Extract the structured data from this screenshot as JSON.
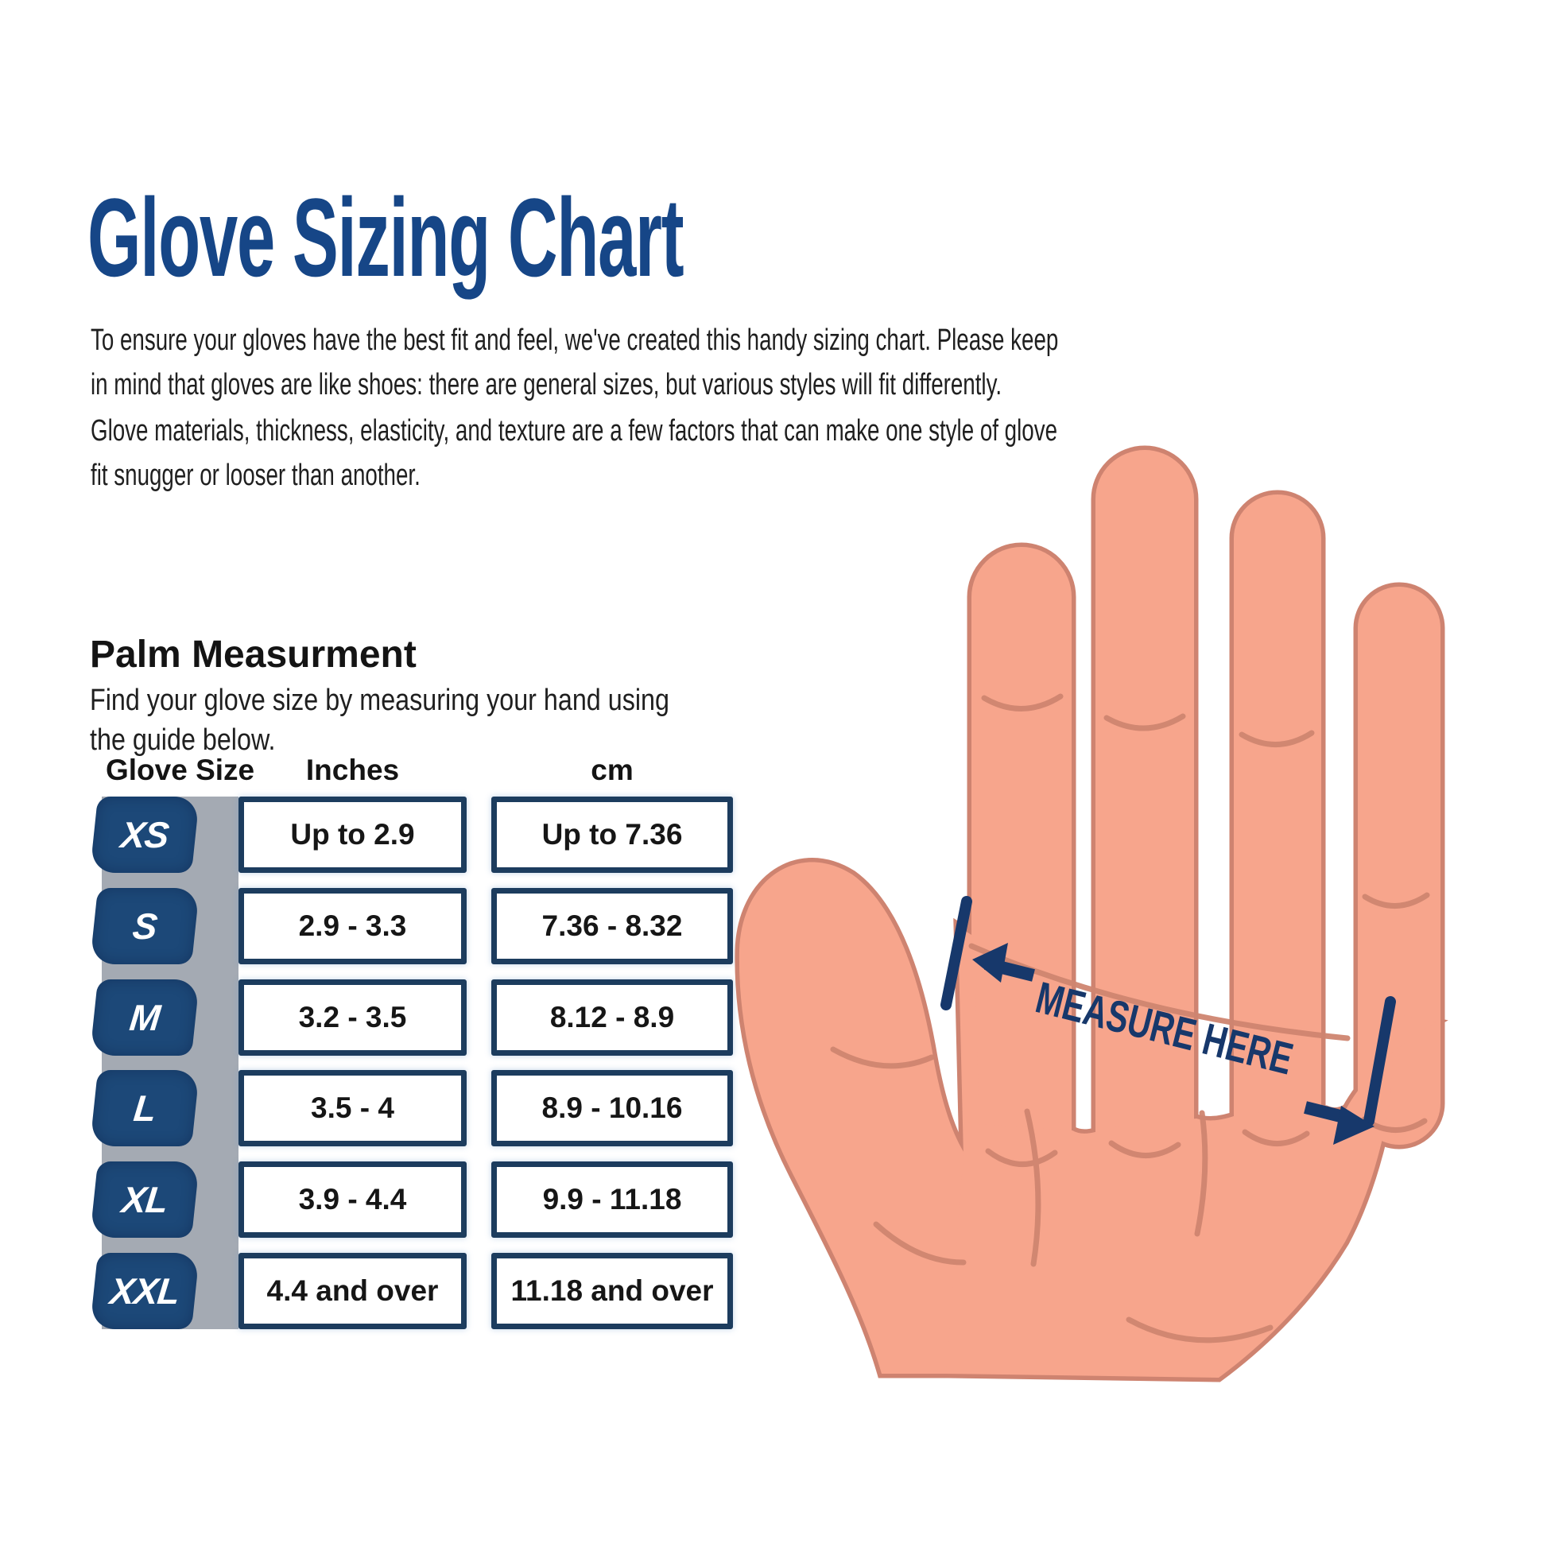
{
  "title": "Glove Sizing Chart",
  "intro": {
    "line1": "To ensure your gloves have the best fit and feel, we've created this handy sizing chart. Please keep",
    "line2": "in mind that gloves are like shoes: there are general sizes, but various styles will fit differently.",
    "line3": "Glove materials, thickness, elasticity, and texture are a few factors that can make one style of glove",
    "line4": "fit snugger or looser than another."
  },
  "palm_section": {
    "heading": "Palm Measurment",
    "sub_line1": "Find your glove size by measuring your hand using",
    "sub_line2": "the guide below."
  },
  "table": {
    "headers": {
      "size": "Glove Size",
      "inches": "Inches",
      "cm": "cm"
    },
    "rows": [
      {
        "size": "XS",
        "inches": "Up to 2.9",
        "cm": "Up to 7.36"
      },
      {
        "size": "S",
        "inches": "2.9 - 3.3",
        "cm": "7.36 - 8.32"
      },
      {
        "size": "M",
        "inches": "3.2 - 3.5",
        "cm": "8.12 - 8.9"
      },
      {
        "size": "L",
        "inches": "3.5 - 4",
        "cm": "8.9 - 10.16"
      },
      {
        "size": "XL",
        "inches": "3.9 - 4.4",
        "cm": "9.9 - 11.18"
      },
      {
        "size": "XXL",
        "inches": "4.4 and over",
        "cm": "11.18 and over"
      }
    ]
  },
  "hand_annotation": {
    "label": "MEASURE HERE"
  },
  "colors": {
    "title_navy": "#164687",
    "badge_blue": "#1c4878",
    "box_border_navy": "#1c3c5e",
    "strip_gray": "#a4aab3",
    "skin": "#f7a58c",
    "skin_outline": "#ce8370",
    "annotation_navy": "#17386b",
    "body_text": "#1f1f1f"
  },
  "chart_data": {
    "type": "table",
    "title": "Glove Sizing Chart",
    "columns": [
      "Glove Size",
      "Inches",
      "cm"
    ],
    "rows": [
      [
        "XS",
        "Up to 2.9",
        "Up to 7.36"
      ],
      [
        "S",
        "2.9 - 3.3",
        "7.36 - 8.32"
      ],
      [
        "M",
        "3.2 - 3.5",
        "8.12 - 8.9"
      ],
      [
        "L",
        "3.5 - 4",
        "8.9 - 10.16"
      ],
      [
        "XL",
        "3.9 - 4.4",
        "9.9 - 11.18"
      ],
      [
        "XXL",
        "4.4 and over",
        "11.18 and over"
      ]
    ]
  }
}
